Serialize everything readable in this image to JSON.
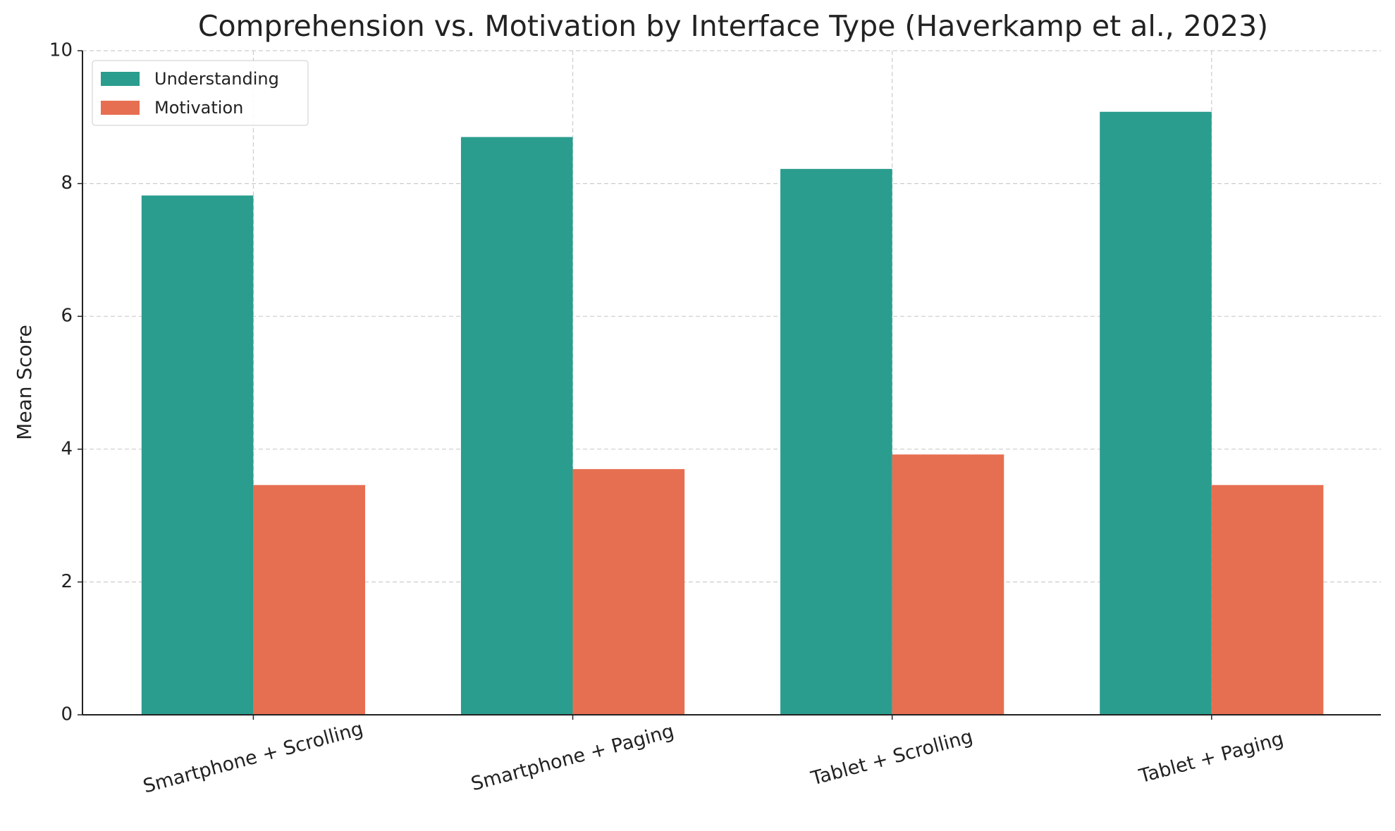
{
  "chart_data": {
    "type": "bar",
    "title": "Comprehension vs. Motivation by Interface Type (Haverkamp et al., 2023)",
    "y_label": "Mean Score",
    "categories": [
      "Smartphone + Scrolling",
      "Smartphone + Paging",
      "Tablet + Scrolling",
      "Tablet + Paging"
    ],
    "series": [
      {
        "name": "Understanding",
        "color": "#2a9d8f",
        "values": [
          7.82,
          8.7,
          8.22,
          9.08
        ]
      },
      {
        "name": "Motivation",
        "color": "#e76f51",
        "values": [
          3.46,
          3.7,
          3.92,
          3.46
        ]
      }
    ],
    "ylim": [
      0,
      10
    ],
    "yticks": [
      0,
      2,
      4,
      6,
      8,
      10
    ],
    "grid": true,
    "legend": "upper left"
  }
}
